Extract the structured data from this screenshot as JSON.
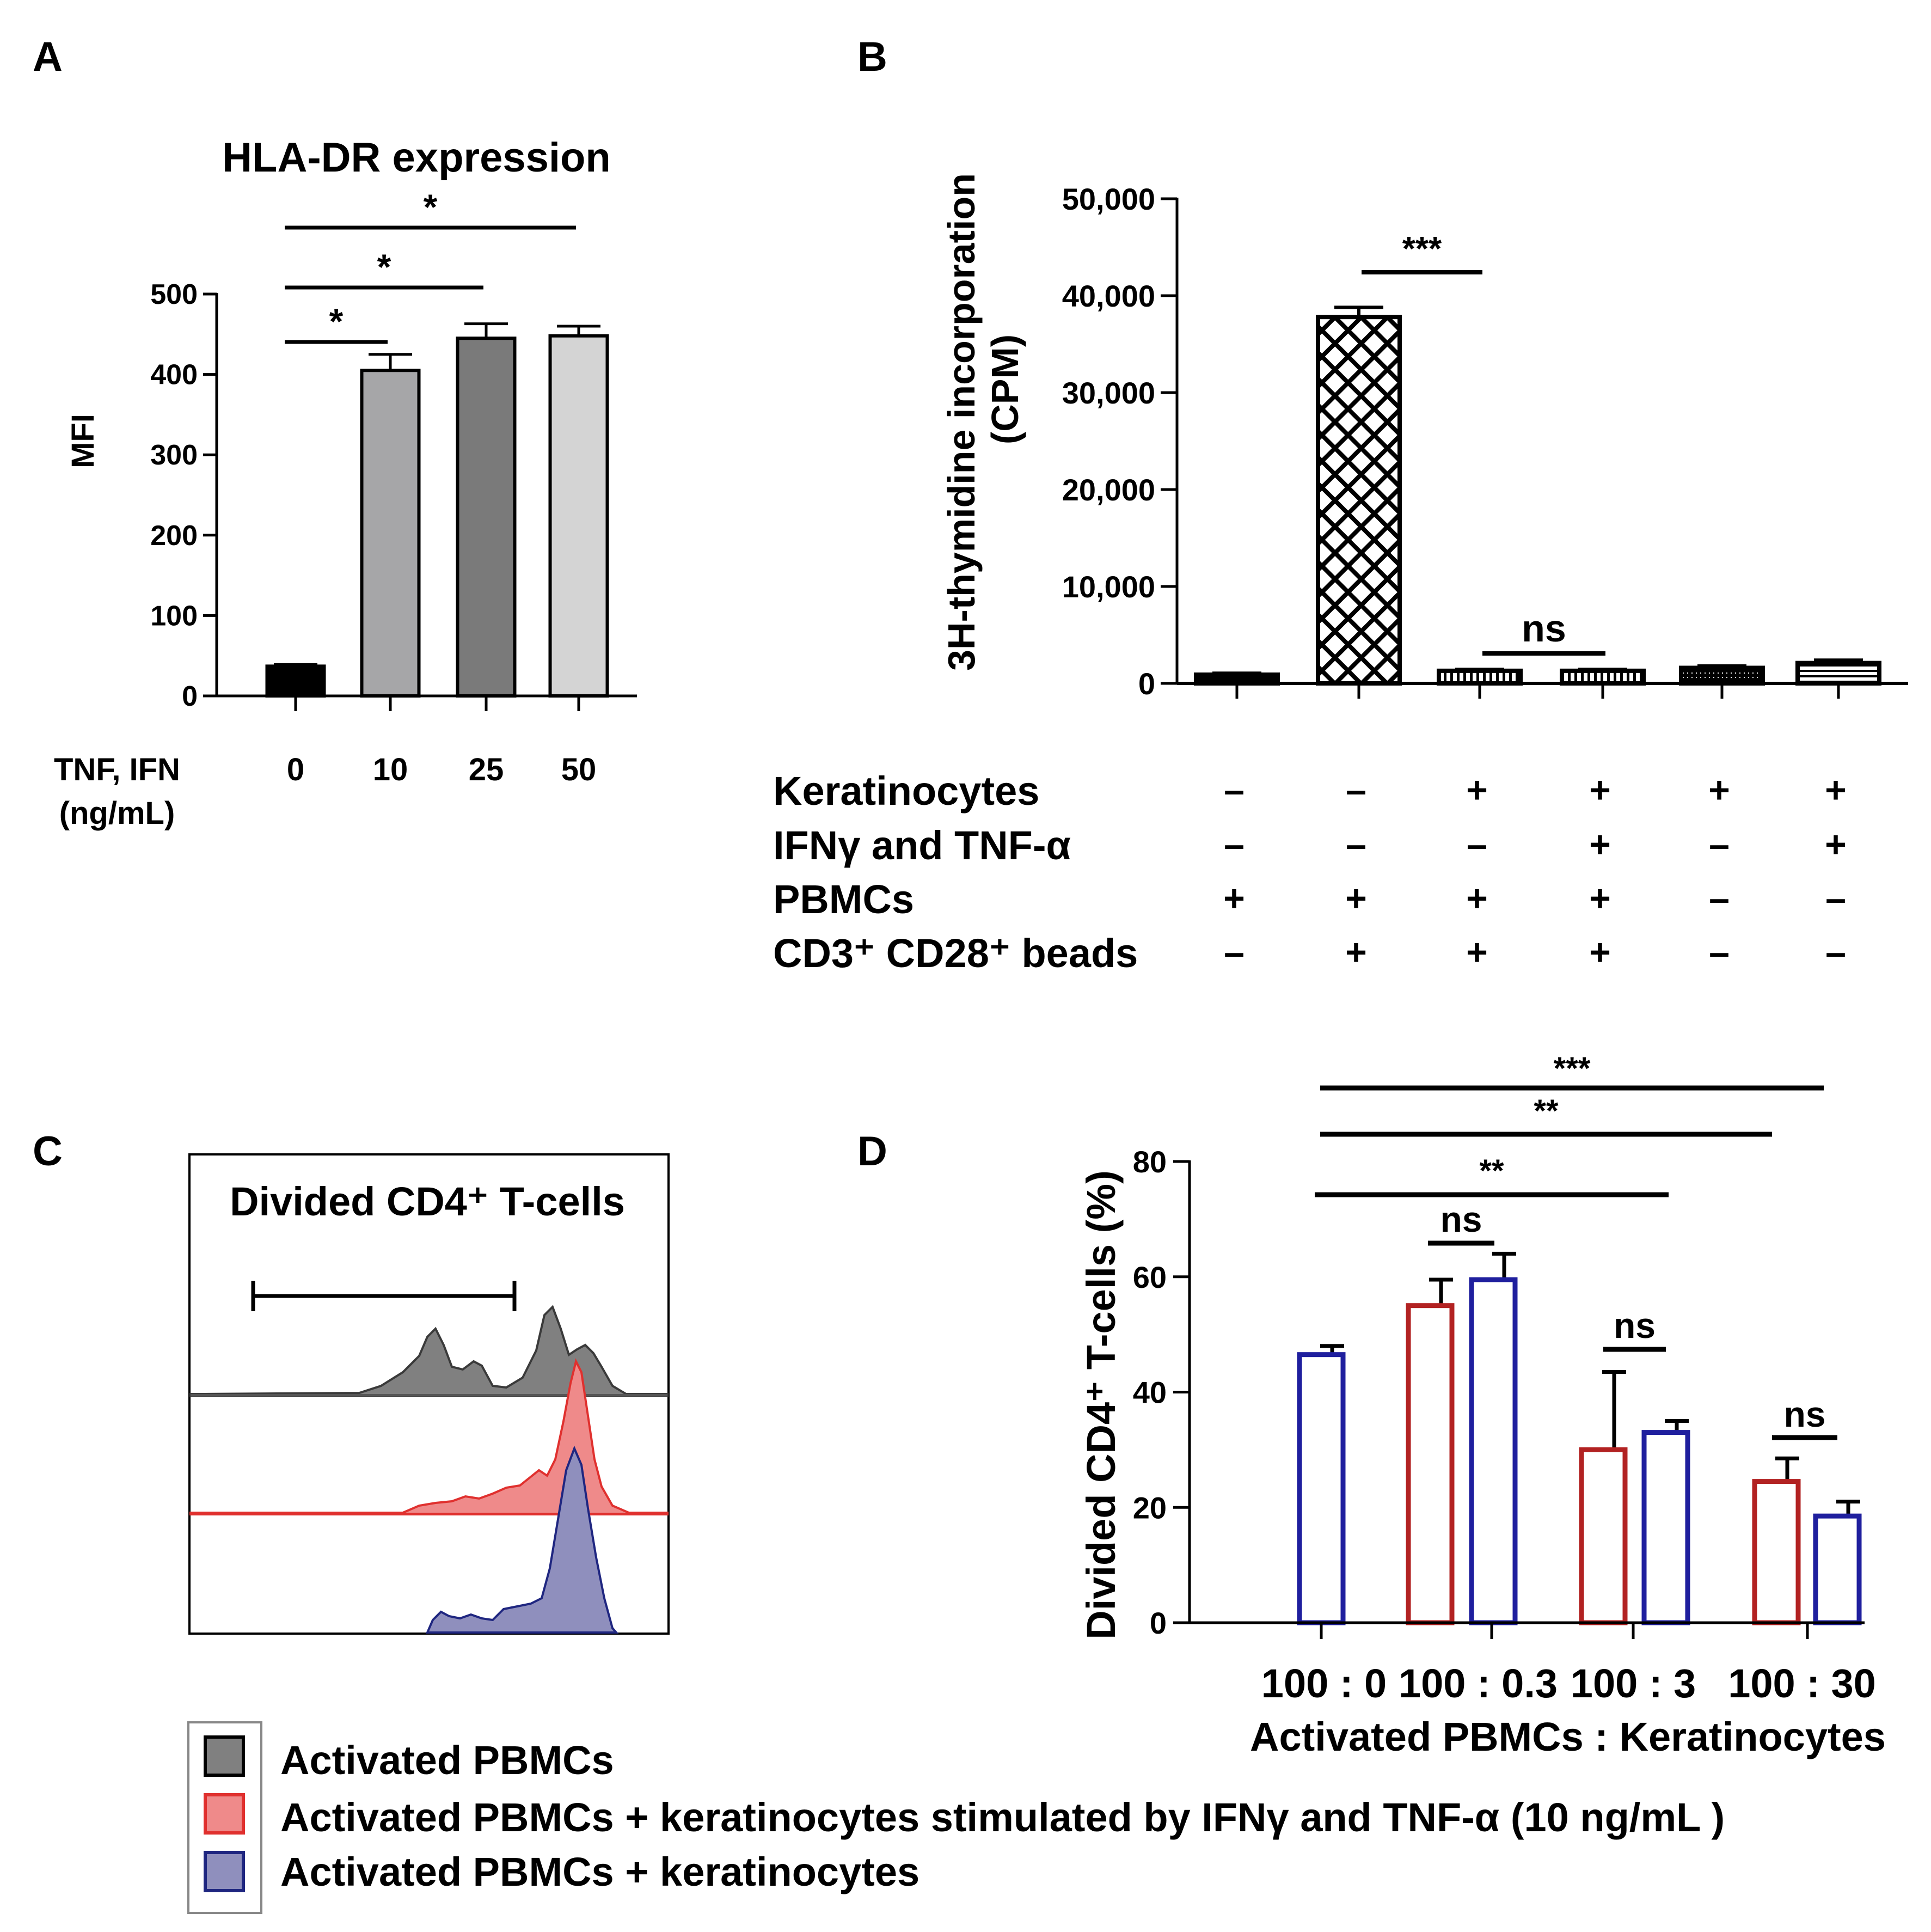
{
  "chart_data": [
    {
      "panel": "A",
      "type": "bar",
      "title": "HLA-DR expression",
      "ylabel": "MFI",
      "xlabel": "TNF, IFN (ng/mL)",
      "xlabel_lines": [
        "TNF, IFN",
        "(ng/mL)"
      ],
      "categories": [
        "0",
        "10",
        "25",
        "50"
      ],
      "values": [
        37,
        405,
        445,
        448
      ],
      "errors": [
        2,
        20,
        18,
        12
      ],
      "bar_colors": [
        "#000000",
        "#a6a6a8",
        "#7a7a7a",
        "#d4d4d4"
      ],
      "ylim": [
        0,
        500
      ],
      "yticks": [
        0,
        100,
        200,
        300,
        400,
        500
      ],
      "ytick_labels": [
        "0",
        "100",
        "200",
        "300",
        "400",
        "500"
      ],
      "significance": [
        {
          "from": 0,
          "to": 1,
          "label": "*"
        },
        {
          "from": 0,
          "to": 2,
          "label": "*"
        },
        {
          "from": 0,
          "to": 3,
          "label": "*"
        }
      ]
    },
    {
      "panel": "B",
      "type": "bar",
      "ylabel": "3H-thymidine incorporation",
      "ylabel_unit": "(CPM)",
      "values": [
        900,
        37800,
        1300,
        1300,
        1600,
        2100
      ],
      "errors": [
        150,
        1000,
        150,
        150,
        200,
        300
      ],
      "patterns": [
        "solid",
        "crosshatch",
        "vlines",
        "vlines",
        "dense",
        "hlines"
      ],
      "ylim": [
        0,
        50000
      ],
      "yticks": [
        0,
        10000,
        20000,
        30000,
        40000,
        50000
      ],
      "ytick_labels": [
        "0",
        "10,000",
        "20,000",
        "30,000",
        "40,000",
        "50,000"
      ],
      "conditions": [
        {
          "label": "Keratinocytes",
          "signs": [
            "–",
            "–",
            "+",
            "+",
            "+",
            "+"
          ]
        },
        {
          "label": "IFNγ and TNF-α",
          "signs": [
            "–",
            "–",
            "–",
            "+",
            "–",
            "+"
          ]
        },
        {
          "label": "PBMCs",
          "signs": [
            "+",
            "+",
            "+",
            "+",
            "–",
            "–"
          ]
        },
        {
          "label": "CD3⁺ CD28⁺ beads",
          "signs": [
            "–",
            "+",
            "+",
            "+",
            "–",
            "–"
          ]
        }
      ],
      "significance": [
        {
          "from": 1,
          "to": 2,
          "label": "***"
        },
        {
          "from": 2,
          "to": 3,
          "label": "ns"
        }
      ]
    },
    {
      "panel": "C",
      "type": "histogram",
      "title": "Divided CD4⁺ T-cells",
      "series": [
        {
          "name": "Activated PBMCs",
          "color": "#808080",
          "stroke": "#3a3a3a"
        },
        {
          "name": "Activated PBMCs + keratinocytes stimulated by IFNγ and TNF-α (10 ng/mL )",
          "color": "#ef8a8a",
          "stroke": "#e0302e"
        },
        {
          "name": "Activated PBMCs + keratinocytes",
          "color": "#8f8fbd",
          "stroke": "#1f2680"
        }
      ]
    },
    {
      "panel": "D",
      "type": "bar",
      "ylabel": "Divided CD4⁺ T-cells (%)",
      "xlabel": "Activated PBMCs : Keratinocytes",
      "categories": [
        "100 : 0",
        "100 : 0.3",
        "100 : 3",
        "100 : 30"
      ],
      "series": [
        {
          "name": "Activated PBMCs + keratinocytes stimulated by IFNγ and TNF-α (10 ng/mL )",
          "color": "#b22222",
          "values": [
            null,
            55,
            30,
            24.5
          ],
          "errors": [
            null,
            4.5,
            13.5,
            4
          ]
        },
        {
          "name": "Activated PBMCs + keratinocytes",
          "color": "#1f1f9e",
          "values": [
            46.5,
            59.5,
            33,
            18.5
          ],
          "errors": [
            1.5,
            4.5,
            2,
            2.5
          ]
        }
      ],
      "ylim": [
        0,
        80
      ],
      "yticks": [
        0,
        20,
        40,
        60,
        80
      ],
      "ytick_labels": [
        "0",
        "20",
        "40",
        "60",
        "80"
      ],
      "significance": [
        {
          "label": "***"
        },
        {
          "label": "**"
        },
        {
          "label": "**"
        },
        {
          "label": "ns"
        },
        {
          "label": "ns"
        },
        {
          "label": "ns"
        }
      ]
    }
  ],
  "panel_letters": [
    "A",
    "B",
    "C",
    "D"
  ],
  "legend": [
    {
      "label": "Activated PBMCs",
      "color": "#808080"
    },
    {
      "label": "Activated PBMCs + keratinocytes stimulated by IFNγ and TNF-α (10 ng/mL )",
      "color": "#ef8a8a"
    },
    {
      "label": "Activated PBMCs + keratinocytes",
      "color": "#8f8fbd"
    }
  ]
}
